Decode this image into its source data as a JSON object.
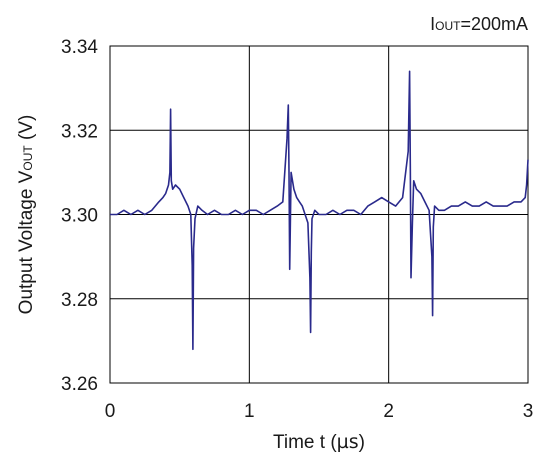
{
  "chart_data": {
    "type": "line",
    "annotation": {
      "prefix": "I",
      "sub": "OUT",
      "suffix": "=200mA"
    },
    "xlabel": {
      "text": "Time t  (",
      "unit": "µs",
      "close": ")"
    },
    "ylabel": {
      "prefix": "Output Voltage V",
      "sub": "OUT",
      "suffix": " (V)"
    },
    "xlim": [
      0,
      3
    ],
    "ylim": [
      3.26,
      3.34
    ],
    "x_ticks": [
      "0",
      "1",
      "2",
      "3"
    ],
    "y_ticks": [
      "3.26",
      "3.28",
      "3.30",
      "3.32",
      "3.34"
    ],
    "grid": true,
    "series": [
      {
        "color": "#2a2a8c",
        "x": [
          0.0,
          0.05,
          0.1,
          0.15,
          0.2,
          0.25,
          0.3,
          0.35,
          0.38,
          0.4,
          0.42,
          0.43,
          0.435,
          0.44,
          0.45,
          0.47,
          0.5,
          0.53,
          0.56,
          0.58,
          0.59,
          0.595,
          0.6,
          0.61,
          0.63,
          0.66,
          0.7,
          0.75,
          0.8,
          0.85,
          0.9,
          0.95,
          1.0,
          1.05,
          1.1,
          1.15,
          1.2,
          1.24,
          1.27,
          1.28,
          1.285,
          1.29,
          1.3,
          1.32,
          1.34,
          1.36,
          1.38,
          1.4,
          1.42,
          1.435,
          1.44,
          1.445,
          1.45,
          1.47,
          1.5,
          1.55,
          1.6,
          1.65,
          1.7,
          1.75,
          1.8,
          1.85,
          1.9,
          1.95,
          2.0,
          2.05,
          2.1,
          2.14,
          2.15,
          2.155,
          2.16,
          2.17,
          2.18,
          2.2,
          2.23,
          2.26,
          2.29,
          2.31,
          2.315,
          2.32,
          2.33,
          2.36,
          2.4,
          2.45,
          2.5,
          2.55,
          2.6,
          2.65,
          2.7,
          2.75,
          2.8,
          2.85,
          2.9,
          2.95,
          2.98,
          2.99,
          3.0
        ],
        "y": [
          3.3,
          3.3,
          3.301,
          3.3,
          3.301,
          3.3,
          3.301,
          3.303,
          3.304,
          3.305,
          3.307,
          3.31,
          3.325,
          3.308,
          3.306,
          3.307,
          3.306,
          3.304,
          3.302,
          3.3,
          3.288,
          3.268,
          3.292,
          3.299,
          3.302,
          3.301,
          3.3,
          3.301,
          3.3,
          3.3,
          3.301,
          3.3,
          3.301,
          3.301,
          3.3,
          3.301,
          3.302,
          3.303,
          3.318,
          3.326,
          3.31,
          3.287,
          3.31,
          3.306,
          3.304,
          3.303,
          3.302,
          3.3,
          3.298,
          3.285,
          3.272,
          3.291,
          3.299,
          3.301,
          3.3,
          3.3,
          3.301,
          3.3,
          3.301,
          3.301,
          3.3,
          3.302,
          3.303,
          3.304,
          3.303,
          3.302,
          3.304,
          3.315,
          3.334,
          3.312,
          3.285,
          3.298,
          3.308,
          3.306,
          3.305,
          3.303,
          3.301,
          3.29,
          3.276,
          3.297,
          3.302,
          3.301,
          3.301,
          3.302,
          3.302,
          3.303,
          3.302,
          3.302,
          3.303,
          3.302,
          3.302,
          3.302,
          3.303,
          3.303,
          3.304,
          3.307,
          3.313
        ]
      }
    ]
  }
}
